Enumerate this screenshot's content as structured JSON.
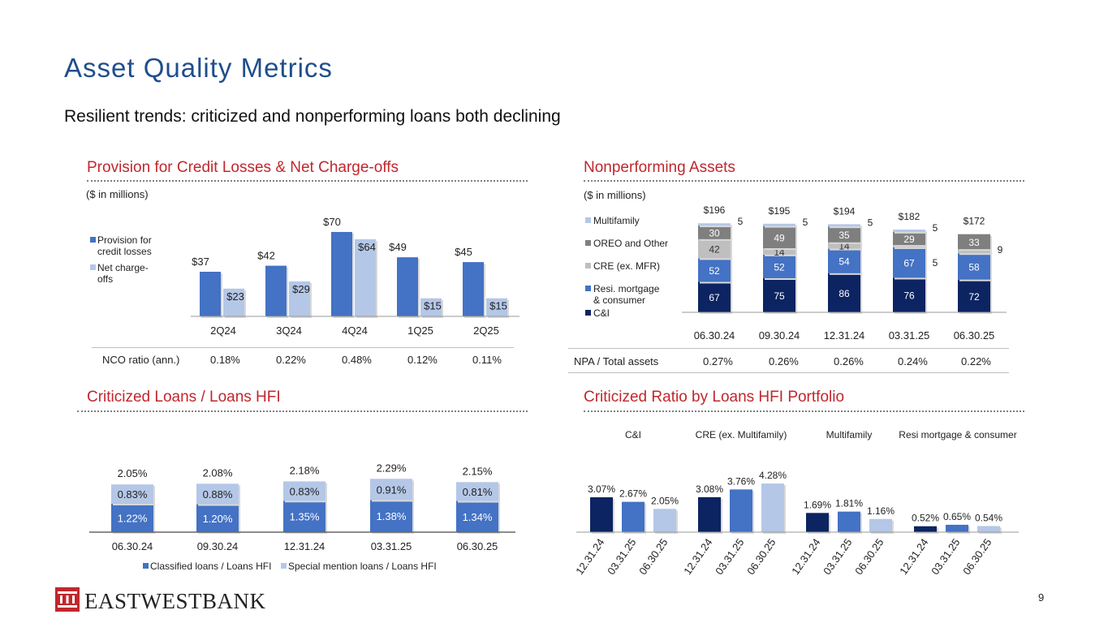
{
  "page": {
    "title": "Asset Quality Metrics",
    "subtitle": "Resilient trends: criticized and nonperforming loans both declining",
    "page_number": "9",
    "logo_text": "EASTWESTBANK",
    "colors": {
      "title": "#1f4e8c",
      "section": "#c0272d",
      "navy": "#0c2461",
      "blue": "#4472c4",
      "light_blue": "#b4c7e7",
      "gray": "#bfbfbf",
      "dark_gray": "#7f7f7f"
    }
  },
  "provision": {
    "section_title": "Provision for Credit Losses & Net Charge-offs",
    "unit_label": "($ in millions)",
    "ratio_label": "NCO ratio (ann.)",
    "ratios": [
      "0.18%",
      "0.22%",
      "0.48%",
      "0.12%",
      "0.11%"
    ]
  },
  "npa": {
    "section_title": "Nonperforming Assets",
    "unit_label": "($ in millions)",
    "ratio_label": "NPA / Total assets",
    "ratios": [
      "0.27%",
      "0.26%",
      "0.26%",
      "0.24%",
      "0.22%"
    ]
  },
  "criticized": {
    "section_title": "Criticized Loans / Loans HFI"
  },
  "portfolio": {
    "section_title": "Criticized Ratio by Loans HFI Portfolio"
  },
  "chart_data": [
    {
      "id": "provision",
      "type": "bar",
      "categories": [
        "2Q24",
        "3Q24",
        "4Q24",
        "1Q25",
        "2Q25"
      ],
      "series": [
        {
          "name": "Provision for credit losses",
          "values": [
            37,
            42,
            70,
            49,
            45
          ],
          "labels": [
            "$37",
            "$42",
            "$70",
            "$49",
            "$45"
          ],
          "color": "#4472c4"
        },
        {
          "name": "Net charge-offs",
          "values": [
            23,
            29,
            64,
            15,
            15
          ],
          "labels": [
            "$23",
            "$29",
            "$64",
            "$15",
            "$15"
          ],
          "color": "#b4c7e7"
        }
      ],
      "legend": "left"
    },
    {
      "id": "npa",
      "type": "bar",
      "stacked": true,
      "categories": [
        "06.30.24",
        "09.30.24",
        "12.31.24",
        "03.31.25",
        "06.30.25"
      ],
      "series": [
        {
          "name": "C&I",
          "values": [
            67,
            75,
            86,
            76,
            72
          ],
          "color": "#0c2461"
        },
        {
          "name": "Resi. mortgage & consumer",
          "values": [
            52,
            52,
            54,
            67,
            58
          ],
          "color": "#4472c4"
        },
        {
          "name": "CRE (ex. MFR)",
          "values": [
            42,
            14,
            14,
            5,
            9
          ],
          "color": "#bfbfbf"
        },
        {
          "name": "OREO and Other",
          "values": [
            30,
            49,
            35,
            29,
            33
          ],
          "color": "#7f7f7f"
        },
        {
          "name": "Multifamily",
          "values": [
            5,
            5,
            5,
            5,
            0
          ],
          "color": "#b4c7e7"
        }
      ],
      "totals": [
        "$196",
        "$195",
        "$194",
        "$182",
        "$172"
      ],
      "legend": "left"
    },
    {
      "id": "criticized",
      "type": "bar",
      "stacked": true,
      "categories": [
        "06.30.24",
        "09.30.24",
        "12.31.24",
        "03.31.25",
        "06.30.25"
      ],
      "series": [
        {
          "name": "Classified loans / Loans HFI",
          "values": [
            1.22,
            1.2,
            1.35,
            1.38,
            1.34
          ],
          "labels": [
            "1.22%",
            "1.20%",
            "1.35%",
            "1.38%",
            "1.34%"
          ],
          "color": "#4472c4"
        },
        {
          "name": "Special mention loans / Loans HFI",
          "values": [
            0.83,
            0.88,
            0.83,
            0.91,
            0.81
          ],
          "labels": [
            "0.83%",
            "0.88%",
            "0.83%",
            "0.91%",
            "0.81%"
          ],
          "color": "#b4c7e7"
        }
      ],
      "totals": [
        "2.05%",
        "2.08%",
        "2.18%",
        "2.29%",
        "2.15%"
      ],
      "legend": "bottom"
    },
    {
      "id": "portfolio",
      "type": "bar",
      "dates": [
        "12.31.24",
        "03.31.25",
        "06.30.25"
      ],
      "groups": [
        {
          "name": "C&I",
          "values": [
            3.07,
            2.67,
            2.05
          ],
          "labels": [
            "3.07%",
            "2.67%",
            "2.05%"
          ]
        },
        {
          "name": "CRE (ex. Multifamily)",
          "values": [
            3.08,
            3.76,
            4.28
          ],
          "labels": [
            "3.08%",
            "3.76%",
            "4.28%"
          ]
        },
        {
          "name": "Multifamily",
          "values": [
            1.69,
            1.81,
            1.16
          ],
          "labels": [
            "1.69%",
            "1.81%",
            "1.16%"
          ]
        },
        {
          "name": "Resi mortgage & consumer",
          "values": [
            0.52,
            0.65,
            0.54
          ],
          "labels": [
            "0.52%",
            "0.65%",
            "0.54%"
          ]
        }
      ],
      "colors": [
        "#0c2461",
        "#4472c4",
        "#b4c7e7"
      ]
    }
  ]
}
